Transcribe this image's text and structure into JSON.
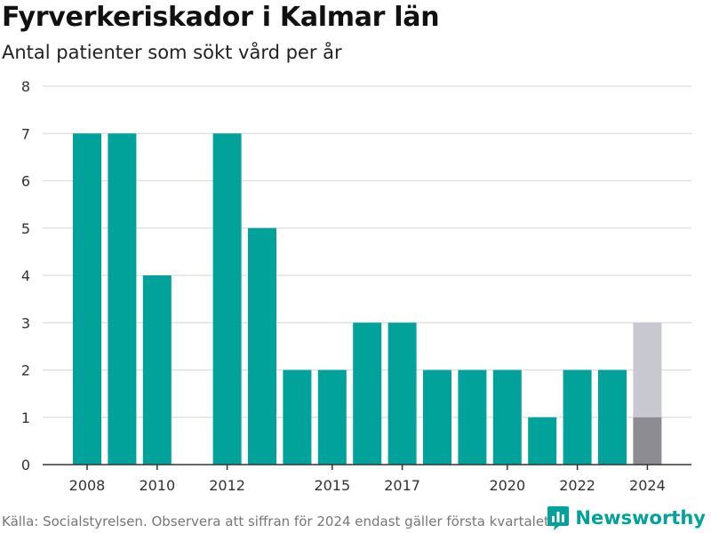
{
  "title": "Fyrverkeriskador i Kalmar län",
  "subtitle": "Antal patienter som sökt vård per år",
  "footer": {
    "source": "Källa: Socialstyrelsen. Observera att siffran för 2024 endast gäller första kvartalet.",
    "brand": "Newsworthy"
  },
  "colors": {
    "bar": "#00a29a",
    "bar_2024_actual": "#8c8c92",
    "bar_2024_extra": "#c8c8d0",
    "grid": "#dddddd",
    "axis": "#333333"
  },
  "chart_data": {
    "type": "bar",
    "categories": [
      "2008",
      "2009",
      "2010",
      "2011",
      "2012",
      "2013",
      "2014",
      "2015",
      "2016",
      "2017",
      "2018",
      "2019",
      "2020",
      "2021",
      "2022",
      "2023",
      "2024"
    ],
    "values": [
      7,
      7,
      4,
      0,
      7,
      5,
      2,
      2,
      3,
      3,
      2,
      2,
      2,
      1,
      2,
      2,
      1
    ],
    "highlight": {
      "category": "2024",
      "actual": 1,
      "shown_total": 3
    },
    "x_tick_labels": [
      "2008",
      "2010",
      "2012",
      "2015",
      "2017",
      "2020",
      "2022",
      "2024"
    ],
    "y_ticks": [
      0,
      1,
      2,
      3,
      4,
      5,
      6,
      7,
      8
    ],
    "ylim": [
      0,
      8
    ],
    "grid": true,
    "xlabel": "",
    "ylabel": ""
  }
}
